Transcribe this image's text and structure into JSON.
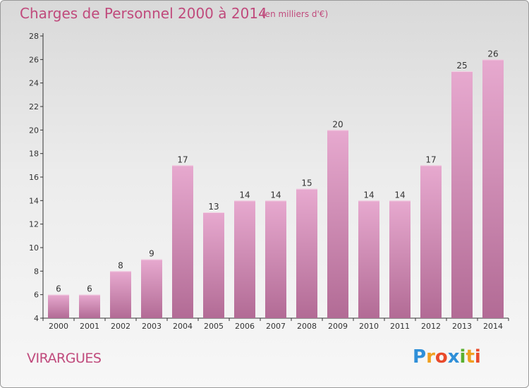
{
  "header": {
    "title": "Charges de Personnel 2000 à 2014",
    "subtitle": "(en milliers d'€)"
  },
  "footer": {
    "commune": "VIRARGUES",
    "logo_text": "Proxiti"
  },
  "colors": {
    "bar_top": "#e7a9cf",
    "bar_bottom": "#b26b95",
    "text_accent": "#c04a7c",
    "axis": "#333333"
  },
  "chart_data": {
    "type": "bar",
    "title": "Charges de Personnel 2000 à 2014",
    "subtitle": "(en milliers d'€)",
    "categories": [
      "2000",
      "2001",
      "2002",
      "2003",
      "2004",
      "2005",
      "2006",
      "2007",
      "2008",
      "2009",
      "2010",
      "2011",
      "2012",
      "2013",
      "2014"
    ],
    "values": [
      6,
      6,
      8,
      9,
      17,
      13,
      14,
      14,
      15,
      20,
      14,
      14,
      17,
      25,
      26
    ],
    "ylim": [
      4,
      28
    ],
    "yticks": [
      4,
      6,
      8,
      10,
      12,
      14,
      16,
      18,
      20,
      22,
      24,
      26,
      28
    ],
    "xlabel": "",
    "ylabel": "",
    "grid": false,
    "data_labels": true
  }
}
